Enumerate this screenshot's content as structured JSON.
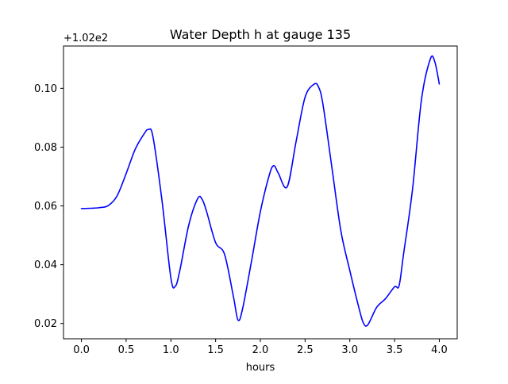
{
  "chart_data": {
    "type": "line",
    "title": "Water Depth h at gauge 135",
    "xlabel": "hours",
    "ylabel": "",
    "y_offset_label": "+1.02e2",
    "y_offset": 102,
    "xlim": [
      -0.2,
      4.2
    ],
    "ylim": [
      0.0148,
      0.1144
    ],
    "x_ticks": [
      0.0,
      0.5,
      1.0,
      1.5,
      2.0,
      2.5,
      3.0,
      3.5,
      4.0
    ],
    "x_tick_labels": [
      "0.0",
      "0.5",
      "1.0",
      "1.5",
      "2.0",
      "2.5",
      "3.0",
      "3.5",
      "4.0"
    ],
    "y_ticks": [
      0.02,
      0.04,
      0.06,
      0.08,
      0.1
    ],
    "y_tick_labels": [
      "0.02",
      "0.04",
      "0.06",
      "0.08",
      "0.10"
    ],
    "grid": false,
    "series": [
      {
        "color": "#0000ff",
        "x": [
          0.0,
          0.1,
          0.2,
          0.3,
          0.4,
          0.5,
          0.6,
          0.7,
          0.75,
          0.8,
          0.9,
          1.0,
          1.05,
          1.1,
          1.2,
          1.3,
          1.35,
          1.4,
          1.5,
          1.6,
          1.7,
          1.75,
          1.8,
          1.9,
          2.0,
          2.1,
          2.15,
          2.2,
          2.3,
          2.4,
          2.5,
          2.6,
          2.65,
          2.7,
          2.8,
          2.9,
          3.0,
          3.1,
          3.15,
          3.2,
          3.3,
          3.4,
          3.5,
          3.55,
          3.6,
          3.7,
          3.8,
          3.9,
          3.95,
          4.0
        ],
        "y": [
          0.0591,
          0.0592,
          0.0594,
          0.0601,
          0.0635,
          0.071,
          0.0792,
          0.0845,
          0.086,
          0.0835,
          0.062,
          0.0355,
          0.0327,
          0.038,
          0.0535,
          0.0625,
          0.0622,
          0.058,
          0.0475,
          0.0435,
          0.029,
          0.0212,
          0.0248,
          0.041,
          0.058,
          0.0705,
          0.0737,
          0.0712,
          0.0665,
          0.082,
          0.097,
          0.1014,
          0.1005,
          0.0945,
          0.073,
          0.0515,
          0.038,
          0.0255,
          0.0203,
          0.0195,
          0.0255,
          0.0285,
          0.0325,
          0.0328,
          0.0435,
          0.0655,
          0.096,
          0.11,
          0.109,
          0.1015
        ]
      }
    ]
  }
}
